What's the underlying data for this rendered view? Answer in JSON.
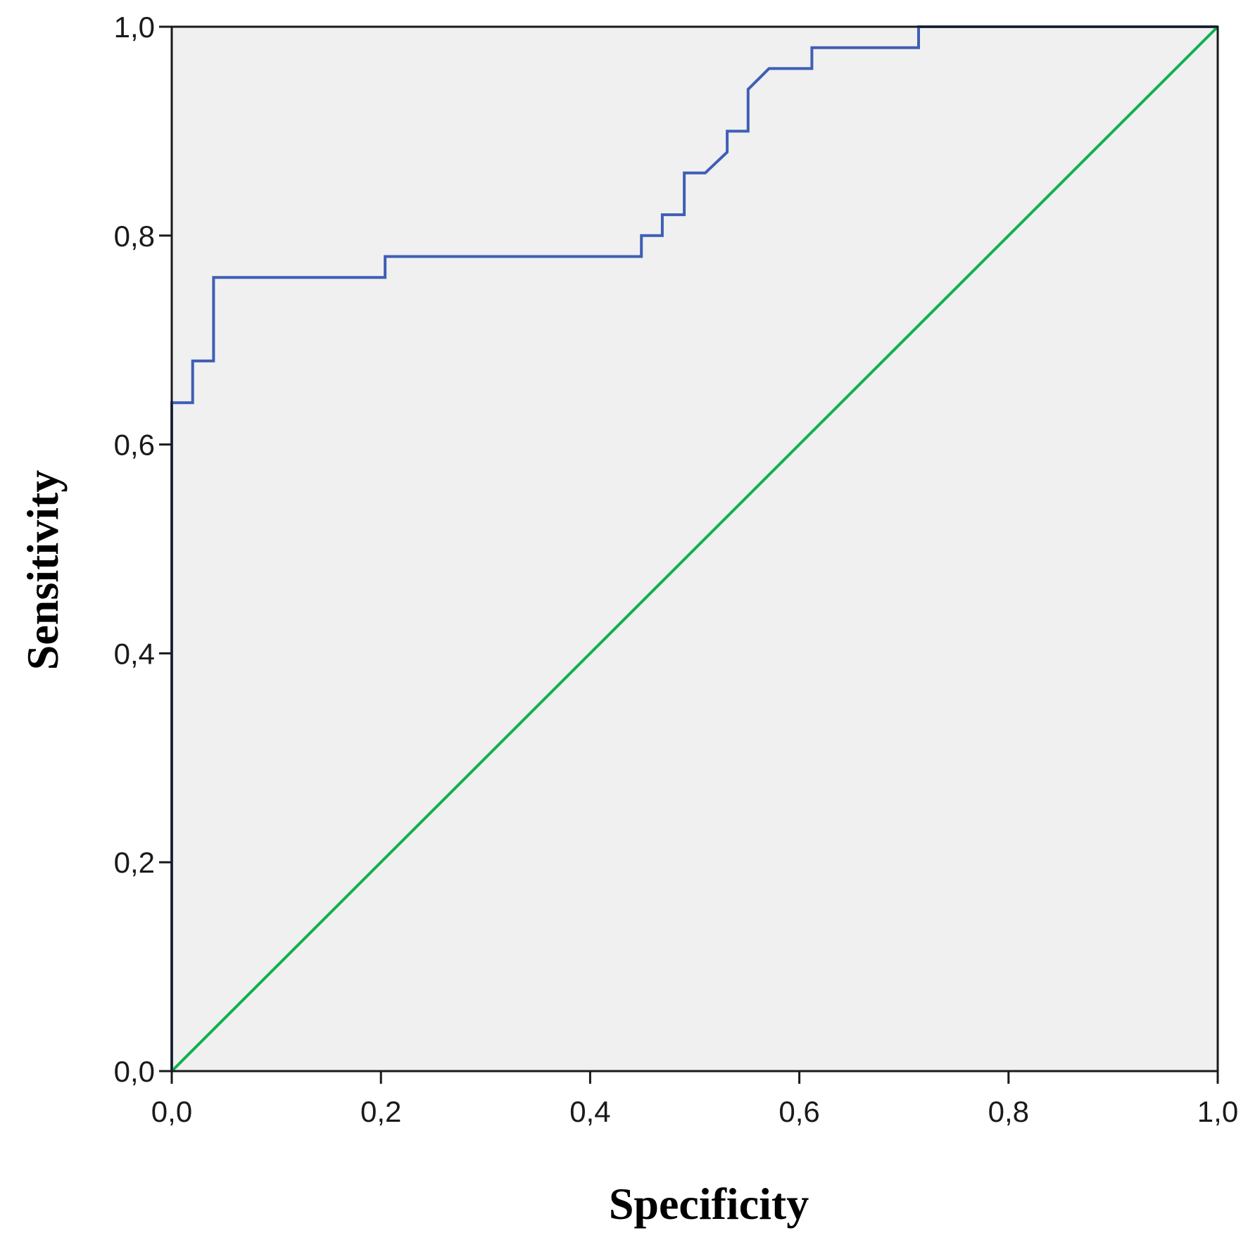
{
  "chart_data": {
    "type": "line",
    "title": "",
    "xlabel": "Specificity",
    "ylabel": "Sensitivity",
    "xlim": [
      0,
      1
    ],
    "ylim": [
      0,
      1
    ],
    "x_ticks": [
      0,
      0.2,
      0.4,
      0.6,
      0.8,
      1.0
    ],
    "x_tick_labels": [
      "0,0",
      "0,2",
      "0,4",
      "0,6",
      "0,8",
      "1,0"
    ],
    "y_ticks": [
      0,
      0.2,
      0.4,
      0.6,
      0.8,
      1.0
    ],
    "y_tick_labels": [
      "0,0",
      "0,2",
      "0,4",
      "0,6",
      "0,8",
      "1,0"
    ],
    "grid": false,
    "legend": "none",
    "plot_background": "#f0f0f0",
    "series": [
      {
        "color": "#3f5fb5",
        "x": [
          0,
          0,
          0.02,
          0.02,
          0.04,
          0.04,
          0.204,
          0.204,
          0.449,
          0.449,
          0.469,
          0.469,
          0.49,
          0.49,
          0.51,
          0.531,
          0.531,
          0.551,
          0.551,
          0.571,
          0.612,
          0.612,
          0.714,
          0.714,
          1.0
        ],
        "y": [
          0,
          0.64,
          0.64,
          0.68,
          0.68,
          0.76,
          0.76,
          0.78,
          0.78,
          0.8,
          0.8,
          0.82,
          0.82,
          0.86,
          0.86,
          0.88,
          0.9,
          0.9,
          0.94,
          0.96,
          0.96,
          0.98,
          0.98,
          1.0,
          1.0
        ]
      },
      {
        "color": "#10b050",
        "x": [
          0,
          1
        ],
        "y": [
          0,
          1
        ]
      }
    ]
  }
}
